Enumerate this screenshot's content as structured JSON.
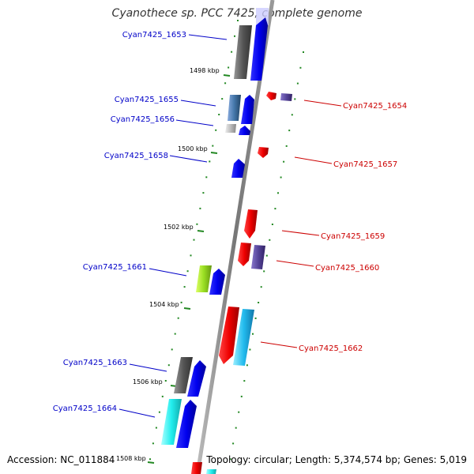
{
  "title": "Cyanothece sp. PCC 7425, complete genome",
  "footer": {
    "accession": "Accession: NC_011884",
    "summary": "Topology: circular; Length: 5,374,574 bp; Genes: 5,019"
  },
  "scale_labels": [
    "1498 kbp",
    "1500 kbp",
    "1502 kbp",
    "1504 kbp",
    "1506 kbp",
    "1508 kbp"
  ],
  "genes": [
    {
      "id": "Cyan7425_1653",
      "strand": "forward"
    },
    {
      "id": "Cyan7425_1654",
      "strand": "reverse"
    },
    {
      "id": "Cyan7425_1655",
      "strand": "forward"
    },
    {
      "id": "Cyan7425_1656",
      "strand": "forward"
    },
    {
      "id": "Cyan7425_1657",
      "strand": "reverse"
    },
    {
      "id": "Cyan7425_1658",
      "strand": "forward"
    },
    {
      "id": "Cyan7425_1659",
      "strand": "reverse"
    },
    {
      "id": "Cyan7425_1660",
      "strand": "reverse"
    },
    {
      "id": "Cyan7425_1661",
      "strand": "forward"
    },
    {
      "id": "Cyan7425_1662",
      "strand": "reverse"
    },
    {
      "id": "Cyan7425_1663",
      "strand": "forward"
    },
    {
      "id": "Cyan7425_1664",
      "strand": "forward"
    }
  ],
  "colors": {
    "forward_label": "#0000c8",
    "reverse_label": "#cc0000",
    "forward_arrow": "#0000ee",
    "reverse_arrow": "#ee0000",
    "backbone": "#888888",
    "tick": "#228822"
  }
}
